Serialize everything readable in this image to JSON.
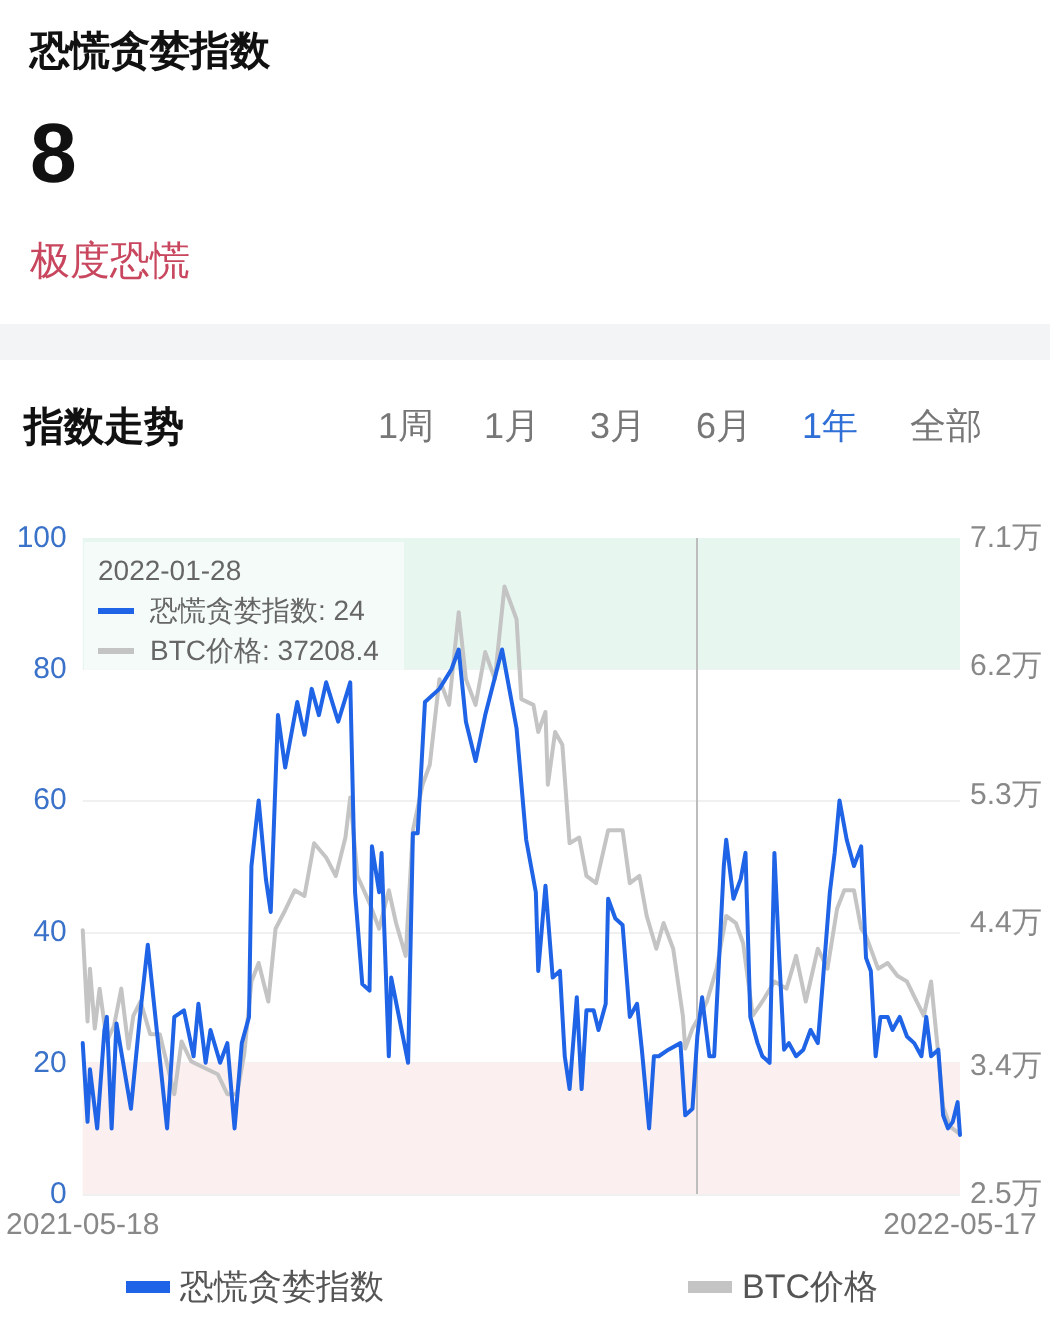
{
  "chart_data": {
    "type": "line",
    "title": "恐慌贪婪指数",
    "subtitle": "指数走势",
    "annotations": [
      "8",
      "极度恐慌",
      "1周",
      "1月",
      "3月",
      "6月",
      "1年",
      "全部",
      "2022-01-28",
      "恐慌贪婪指数: 24",
      "BTC价格: 37208.4"
    ],
    "xlim": [
      "2021-05-18",
      "2022-05-17"
    ],
    "xticks": [
      "2021-05-18",
      "2022-05-17"
    ],
    "ylim": [
      0,
      100
    ],
    "yticks": [
      0,
      20,
      40,
      60,
      80,
      100
    ],
    "y2lim": [
      2.5,
      7.1
    ],
    "y2ticks": [
      {
        "value": 2.5,
        "label": "2.5万"
      },
      {
        "value": 3.4,
        "label": "3.4万"
      },
      {
        "value": 4.4,
        "label": "4.4万"
      },
      {
        "value": 5.3,
        "label": "5.3万"
      },
      {
        "value": 6.2,
        "label": "6.2万"
      },
      {
        "value": 7.1,
        "label": "7.1万"
      }
    ],
    "series": [
      {
        "name": "恐慌贪婪指数",
        "color": "#1f63e6",
        "x": [
          "2021-05-18",
          "2021-05-20",
          "2021-05-21",
          "2021-05-24",
          "2021-05-27",
          "2021-05-28",
          "2021-05-30",
          "2021-06-01",
          "2021-06-07",
          "2021-06-11",
          "2021-06-14",
          "2021-06-18",
          "2021-06-22",
          "2021-06-25",
          "2021-06-29",
          "2021-07-03",
          "2021-07-05",
          "2021-07-08",
          "2021-07-10",
          "2021-07-14",
          "2021-07-17",
          "2021-07-20",
          "2021-07-23",
          "2021-07-26",
          "2021-07-27",
          "2021-07-30",
          "2021-08-02",
          "2021-08-04",
          "2021-08-07",
          "2021-08-10",
          "2021-08-15",
          "2021-08-18",
          "2021-08-21",
          "2021-08-24",
          "2021-08-27",
          "2021-09-01",
          "2021-09-06",
          "2021-09-08",
          "2021-09-11",
          "2021-09-14",
          "2021-09-15",
          "2021-09-18",
          "2021-09-19",
          "2021-09-22",
          "2021-09-23",
          "2021-09-30",
          "2021-10-02",
          "2021-10-04",
          "2021-10-07",
          "2021-10-13",
          "2021-10-18",
          "2021-10-21",
          "2021-10-24",
          "2021-10-28",
          "2021-11-01",
          "2021-11-08",
          "2021-11-14",
          "2021-11-18",
          "2021-11-22",
          "2021-11-23",
          "2021-11-26",
          "2021-11-29",
          "2021-12-02",
          "2021-12-04",
          "2021-12-06",
          "2021-12-09",
          "2021-12-11",
          "2021-12-13",
          "2021-12-16",
          "2021-12-18",
          "2021-12-21",
          "2021-12-22",
          "2021-12-25",
          "2021-12-28",
          "2021-12-31",
          "2022-01-03",
          "2022-01-05",
          "2022-01-08",
          "2022-01-10",
          "2022-01-12",
          "2022-01-16",
          "2022-01-21",
          "2022-01-23",
          "2022-01-26",
          "2022-01-28",
          "2022-01-30",
          "2022-02-02",
          "2022-02-04",
          "2022-02-08",
          "2022-02-09",
          "2022-02-12",
          "2022-02-15",
          "2022-02-17",
          "2022-02-19",
          "2022-02-22",
          "2022-02-24",
          "2022-02-27",
          "2022-03-01",
          "2022-03-03",
          "2022-03-05",
          "2022-03-07",
          "2022-03-10",
          "2022-03-13",
          "2022-03-16",
          "2022-03-19",
          "2022-03-21",
          "2022-03-24",
          "2022-03-26",
          "2022-03-28",
          "2022-03-31",
          "2022-04-03",
          "2022-04-06",
          "2022-04-08",
          "2022-04-10",
          "2022-04-12",
          "2022-04-14",
          "2022-04-17",
          "2022-04-19",
          "2022-04-22",
          "2022-04-25",
          "2022-04-28",
          "2022-05-01",
          "2022-05-03",
          "2022-05-05",
          "2022-05-08",
          "2022-05-10",
          "2022-05-12",
          "2022-05-14",
          "2022-05-16",
          "2022-05-17"
        ],
        "values": [
          23,
          11,
          19,
          10,
          25,
          27,
          10,
          26,
          13,
          28,
          38,
          24,
          10,
          27,
          28,
          21,
          29,
          20,
          25,
          20,
          23,
          10,
          23,
          27,
          50,
          60,
          48,
          43,
          73,
          65,
          75,
          70,
          77,
          73,
          78,
          72,
          78,
          46,
          32,
          31,
          53,
          46,
          52,
          21,
          33,
          20,
          55,
          55,
          75,
          77,
          80,
          83,
          72,
          66,
          73,
          83,
          71,
          54,
          46,
          34,
          47,
          33,
          34,
          21,
          16,
          30,
          16,
          28,
          28,
          25,
          29,
          45,
          42,
          41,
          27,
          29,
          22,
          10,
          21,
          21,
          22,
          23,
          12,
          13,
          24,
          30,
          21,
          21,
          50,
          54,
          45,
          48,
          52,
          27,
          23,
          21,
          20,
          52,
          36,
          22,
          23,
          21,
          22,
          25,
          23,
          32,
          46,
          52,
          60,
          54,
          50,
          53,
          36,
          34,
          21,
          27,
          27,
          25,
          27,
          24,
          23,
          21,
          27,
          21,
          22,
          12,
          10,
          11,
          14,
          9
        ]
      },
      {
        "name": "BTC价格",
        "color": "#c4c4c4",
        "axis": "y2",
        "x": [
          "2021-05-18",
          "2021-05-20",
          "2021-05-21",
          "2021-05-23",
          "2021-05-25",
          "2021-05-28",
          "2021-05-31",
          "2021-06-03",
          "2021-06-06",
          "2021-06-08",
          "2021-06-11",
          "2021-06-15",
          "2021-06-19",
          "2021-06-25",
          "2021-06-28",
          "2021-07-02",
          "2021-07-08",
          "2021-07-13",
          "2021-07-17",
          "2021-07-21",
          "2021-07-24",
          "2021-07-27",
          "2021-07-30",
          "2021-08-03",
          "2021-08-06",
          "2021-08-10",
          "2021-08-14",
          "2021-08-18",
          "2021-08-22",
          "2021-08-27",
          "2021-08-31",
          "2021-09-04",
          "2021-09-06",
          "2021-09-09",
          "2021-09-14",
          "2021-09-18",
          "2021-09-22",
          "2021-09-25",
          "2021-09-29",
          "2021-10-02",
          "2021-10-06",
          "2021-10-09",
          "2021-10-13",
          "2021-10-17",
          "2021-10-21",
          "2021-10-24",
          "2021-10-28",
          "2021-11-01",
          "2021-11-05",
          "2021-11-09",
          "2021-11-14",
          "2021-11-16",
          "2021-11-21",
          "2021-11-23",
          "2021-11-26",
          "2021-11-27",
          "2021-11-30",
          "2021-12-03",
          "2021-12-06",
          "2021-12-10",
          "2021-12-13",
          "2021-12-17",
          "2021-12-22",
          "2021-12-28",
          "2021-12-31",
          "2022-01-04",
          "2022-01-07",
          "2022-01-11",
          "2022-01-14",
          "2022-01-18",
          "2022-01-22",
          "2022-01-23",
          "2022-01-26",
          "2022-01-28",
          "2022-02-01",
          "2022-02-05",
          "2022-02-09",
          "2022-02-13",
          "2022-02-16",
          "2022-02-20",
          "2022-02-24",
          "2022-03-01",
          "2022-03-06",
          "2022-03-10",
          "2022-03-14",
          "2022-03-19",
          "2022-03-23",
          "2022-03-27",
          "2022-03-30",
          "2022-04-03",
          "2022-04-06",
          "2022-04-08",
          "2022-04-13",
          "2022-04-17",
          "2022-04-21",
          "2022-04-25",
          "2022-04-29",
          "2022-05-02",
          "2022-05-05",
          "2022-05-08",
          "2022-05-10",
          "2022-05-13",
          "2022-05-17"
        ],
        "values": [
          4.35,
          3.71,
          4.08,
          3.66,
          3.94,
          3.57,
          3.68,
          3.94,
          3.52,
          3.75,
          3.85,
          3.62,
          3.62,
          3.2,
          3.57,
          3.43,
          3.38,
          3.34,
          3.2,
          3.2,
          3.48,
          3.99,
          4.12,
          3.85,
          4.36,
          4.49,
          4.63,
          4.59,
          4.96,
          4.86,
          4.73,
          5.0,
          5.28,
          4.73,
          4.54,
          4.36,
          4.63,
          4.4,
          4.17,
          5.05,
          5.37,
          5.51,
          6.11,
          5.93,
          6.58,
          6.11,
          5.93,
          6.3,
          6.11,
          6.76,
          6.53,
          5.97,
          5.93,
          5.74,
          5.88,
          5.37,
          5.74,
          5.65,
          4.96,
          5.0,
          4.73,
          4.68,
          5.05,
          5.05,
          4.68,
          4.73,
          4.45,
          4.22,
          4.4,
          4.22,
          3.75,
          3.52,
          3.66,
          3.72,
          3.85,
          4.08,
          4.45,
          4.4,
          4.26,
          3.75,
          3.85,
          3.99,
          3.94,
          4.17,
          3.85,
          4.22,
          4.08,
          4.5,
          4.63,
          4.63,
          4.36,
          4.31,
          4.08,
          4.12,
          4.03,
          3.99,
          3.85,
          3.75,
          3.99,
          3.48,
          3.11,
          2.97,
          2.92
        ]
      }
    ],
    "bands": [
      {
        "axis": "y",
        "from": 80,
        "to": 100,
        "color": "#e8f6f0"
      },
      {
        "axis": "y",
        "from": 0,
        "to": 20,
        "color": "#fcefef"
      }
    ],
    "ref_lines": [
      {
        "axis": "x",
        "value": "2022-01-28",
        "color": "#bdbdbd"
      }
    ],
    "grid": "y",
    "legend": "bottom",
    "marker": "none",
    "line_style": "solid"
  }
}
